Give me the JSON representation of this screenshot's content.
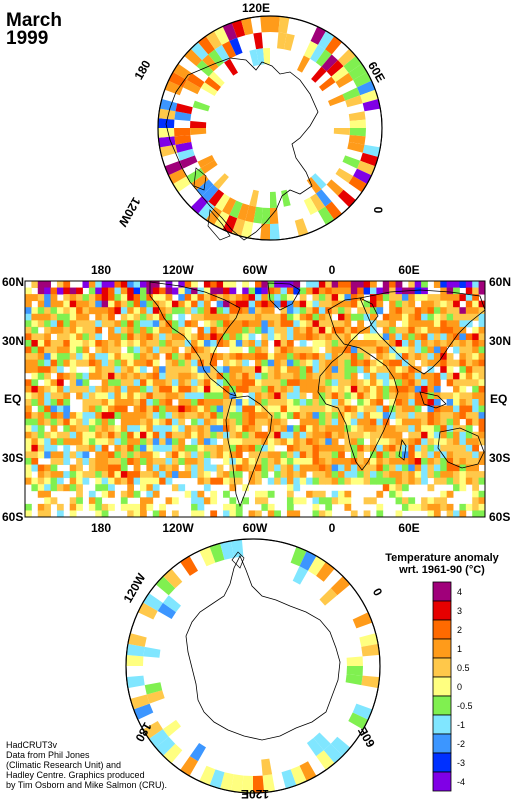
{
  "header": {
    "month": "March",
    "year": "1999"
  },
  "north_polar_labels": [
    "120E",
    "60E",
    "0",
    "120W",
    "180"
  ],
  "equirect_labels": {
    "top_lon": [
      "180",
      "120W",
      "60W",
      "0",
      "60E"
    ],
    "bottom_lon": [
      "180",
      "120W",
      "60W",
      "0",
      "60E"
    ],
    "left_lat": [
      "60N",
      "30N",
      "EQ",
      "30S",
      "60S"
    ],
    "right_lat": [
      "60N",
      "30N",
      "EQ",
      "30S",
      "60S"
    ]
  },
  "south_polar_labels": [
    "120W",
    "0",
    "180",
    "60E",
    "120E"
  ],
  "legend": {
    "title_line1": "Temperature anomaly",
    "title_line2": "wrt. 1961-90  (°C)",
    "ticks": [
      "4",
      "3",
      "2",
      "1",
      "0.5",
      "0",
      "-0.5",
      "-1",
      "-2",
      "-3",
      "-4"
    ],
    "colors": [
      "#a0007a",
      "#e60000",
      "#ff6a00",
      "#ff9b1a",
      "#ffc84a",
      "#ffff80",
      "#80f050",
      "#80e6ff",
      "#3c96ff",
      "#0030ff",
      "#8000e6"
    ]
  },
  "credit": {
    "line1": "HadCRUT3v",
    "line2": "Data from Phil Jones",
    "line3": "(Climatic Research Unit) and",
    "line4": "Hadley Centre.  Graphics produced",
    "line5": "by Tim Osborn and Mike Salmon (CRU)."
  }
}
